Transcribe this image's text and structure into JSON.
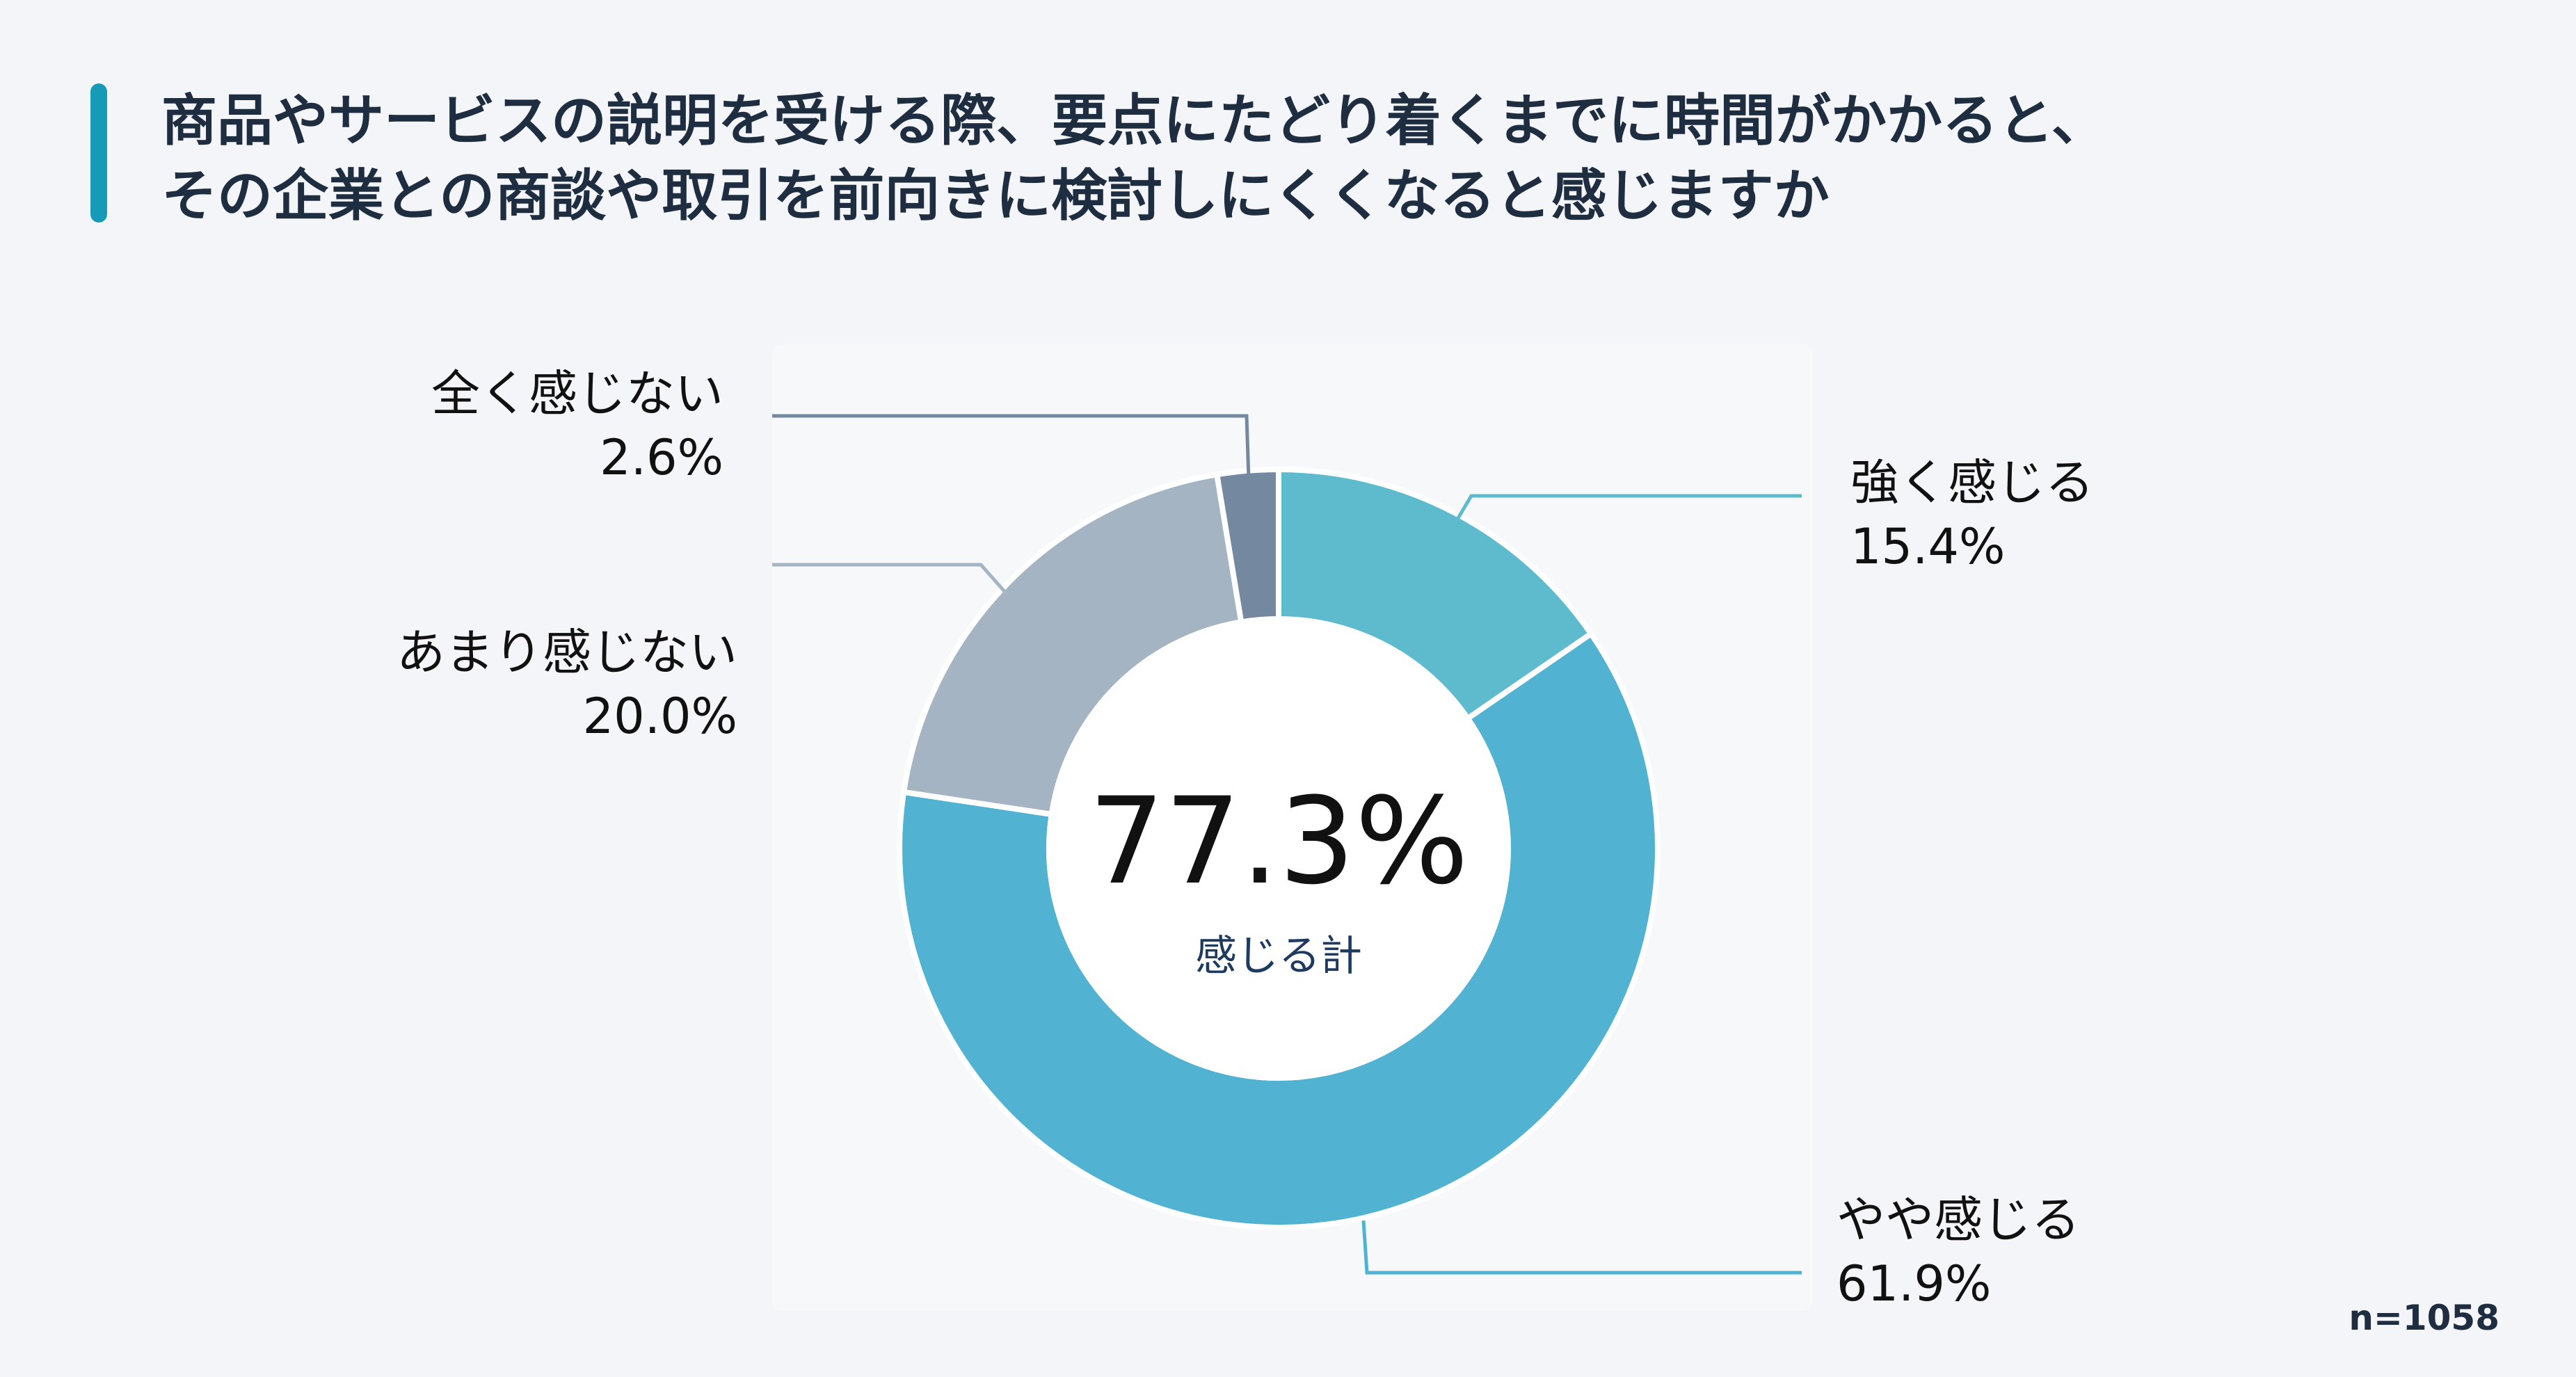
{
  "title": {
    "line1": "商品やサービスの説明を受ける際、要点にたどり着くまでに時間がかかると、",
    "line2": "その企業との商談や取引を前向きに検討しにくくなると感じますか"
  },
  "colors": {
    "accent": "#159bb7",
    "strongly_agree": "#5ebbce",
    "somewhat_agree": "#52b2d1",
    "somewhat_disagree": "#a5b4c2",
    "strongly_disagree": "#74889f"
  },
  "chart_data": {
    "type": "pie",
    "donut": true,
    "direction": "clockwise",
    "start": "top",
    "slices": [
      {
        "label": "強く感じる",
        "value": 15.4,
        "display": "15.4%",
        "color": "#5ebbce"
      },
      {
        "label": "やや感じる",
        "value": 61.9,
        "display": "61.9%",
        "color": "#52b2d1"
      },
      {
        "label": "あまり感じない",
        "value": 20.0,
        "display": "20.0%",
        "color": "#a5b4c2"
      },
      {
        "label": "全く感じない",
        "value": 2.6,
        "display": "2.6%",
        "color": "#74889f"
      }
    ],
    "center": {
      "value": "77.3%",
      "label": "感じる計"
    },
    "annotation": "n=1058"
  }
}
